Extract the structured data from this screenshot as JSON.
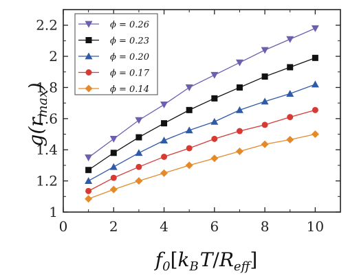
{
  "chart_data": {
    "type": "line",
    "xlabel": "f0[kBT/Reff]",
    "ylabel": "g(rmax)",
    "xlabel_parts": {
      "base": "f",
      "base_sub": "0",
      "bracket_open": "[",
      "k": "k",
      "k_sub": "B",
      "t": "T",
      "slash": "/",
      "r": "R",
      "r_sub": "eff",
      "bracket_close": "]"
    },
    "ylabel_parts": {
      "base": "g(r",
      "sub": "max",
      "close": ")"
    },
    "xlim": [
      0,
      11
    ],
    "ylim": [
      1,
      2.3
    ],
    "xticks": [
      0,
      2,
      4,
      6,
      8,
      10
    ],
    "xtick_labels": [
      "0",
      "2",
      "4",
      "6",
      "8",
      "10"
    ],
    "yticks": [
      1,
      1.2,
      1.4,
      1.6,
      1.8,
      2,
      2.2
    ],
    "ytick_labels": [
      "1",
      "1.2",
      "1.4",
      "1.6",
      "1.8",
      "2",
      "2.2"
    ],
    "legend_position": "top-left",
    "grid": false,
    "x": [
      1,
      2,
      3,
      4,
      5,
      6,
      7,
      8,
      9,
      10
    ],
    "series": [
      {
        "name": "ϕ = 0.26",
        "color": "#6b5fb0",
        "marker": "triangle-down",
        "values": [
          1.35,
          1.47,
          1.59,
          1.69,
          1.8,
          1.88,
          1.96,
          2.04,
          2.11,
          2.18
        ]
      },
      {
        "name": "ϕ = 0.23",
        "color": "#111111",
        "marker": "square",
        "values": [
          1.27,
          1.38,
          1.48,
          1.57,
          1.655,
          1.73,
          1.8,
          1.87,
          1.93,
          1.99
        ]
      },
      {
        "name": "ϕ = 0.20",
        "color": "#2f5aa8",
        "marker": "triangle-up",
        "values": [
          1.2,
          1.29,
          1.38,
          1.46,
          1.525,
          1.58,
          1.655,
          1.71,
          1.76,
          1.82
        ]
      },
      {
        "name": "ϕ = 0.17",
        "color": "#d63a32",
        "marker": "circle",
        "values": [
          1.135,
          1.22,
          1.29,
          1.355,
          1.41,
          1.47,
          1.52,
          1.56,
          1.61,
          1.655
        ]
      },
      {
        "name": "ϕ = 0.14",
        "color": "#e58a2a",
        "marker": "diamond",
        "values": [
          1.085,
          1.145,
          1.2,
          1.25,
          1.3,
          1.345,
          1.39,
          1.435,
          1.465,
          1.5
        ]
      }
    ]
  }
}
